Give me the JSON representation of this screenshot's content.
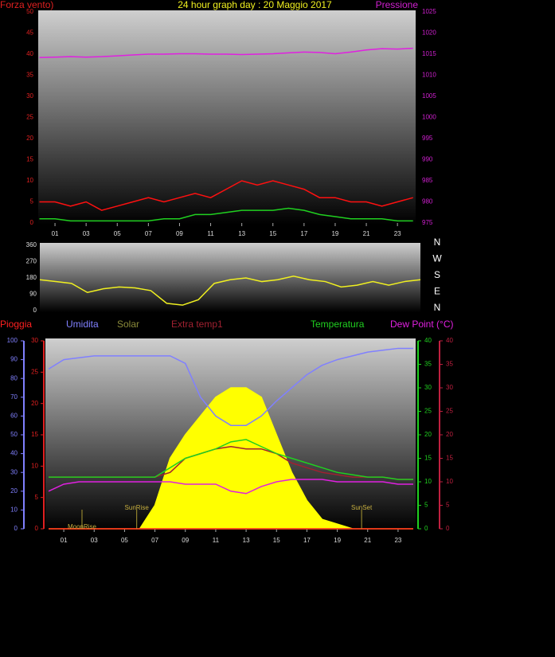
{
  "title": "24 hour graph day : 20 Maggio 2017",
  "chart_data": [
    {
      "type": "line",
      "x": [
        0,
        1,
        2,
        3,
        4,
        5,
        6,
        7,
        8,
        9,
        10,
        11,
        12,
        13,
        14,
        15,
        16,
        17,
        18,
        19,
        20,
        21,
        22,
        23,
        24
      ],
      "xlim": [
        0,
        24
      ],
      "xticks": [
        {
          "value": 1,
          "label": "01"
        },
        {
          "value": 3,
          "label": "03"
        },
        {
          "value": 5,
          "label": "05"
        },
        {
          "value": 7,
          "label": "07"
        },
        {
          "value": 9,
          "label": "09"
        },
        {
          "value": 11,
          "label": "11"
        },
        {
          "value": 13,
          "label": "13"
        },
        {
          "value": 15,
          "label": "15"
        },
        {
          "value": 17,
          "label": "17"
        },
        {
          "value": 19,
          "label": "19"
        },
        {
          "value": 21,
          "label": "21"
        },
        {
          "value": 23,
          "label": "23"
        }
      ],
      "axes": {
        "speed": {
          "label": "Forza vento)",
          "color": "#e02020",
          "lim": [
            0,
            50
          ],
          "ticks": [
            0,
            5,
            10,
            15,
            20,
            25,
            30,
            35,
            40,
            45,
            50
          ]
        },
        "pressure": {
          "label": "Pressione",
          "color": "#d020d0",
          "lim": [
            975,
            1025
          ],
          "ticks": [
            975,
            980,
            985,
            990,
            995,
            1000,
            1005,
            1010,
            1015,
            1020,
            1025
          ]
        }
      },
      "series": [
        {
          "axis": "speed",
          "color": "#ff1010",
          "values": [
            5,
            5,
            4,
            5,
            3,
            4,
            5,
            6,
            5,
            6,
            7,
            6,
            8,
            10,
            9,
            10,
            9,
            8,
            6,
            6,
            5,
            5,
            4,
            5,
            6
          ]
        },
        {
          "axis": "speed",
          "color": "#20d020",
          "values": [
            1,
            1,
            0.5,
            0.5,
            0.5,
            0.5,
            0.5,
            0.5,
            1,
            1,
            2,
            2,
            2.5,
            3,
            3,
            3,
            3.5,
            3,
            2,
            1.5,
            1,
            1,
            1,
            0.5,
            0.5
          ]
        },
        {
          "axis": "pressure",
          "color": "#e020e0",
          "values": [
            1014.2,
            1014.3,
            1014.4,
            1014.3,
            1014.4,
            1014.6,
            1014.8,
            1015,
            1015,
            1015.1,
            1015.1,
            1015,
            1015,
            1014.9,
            1015,
            1015.1,
            1015.3,
            1015.5,
            1015.4,
            1015.1,
            1015.5,
            1016,
            1016.3,
            1016.2,
            1016.4
          ]
        }
      ]
    },
    {
      "type": "line",
      "x": [
        0,
        1,
        2,
        3,
        4,
        5,
        6,
        7,
        8,
        9,
        10,
        11,
        12,
        13,
        14,
        15,
        16,
        17,
        18,
        19,
        20,
        21,
        22,
        23,
        24
      ],
      "xlim": [
        0,
        24
      ],
      "compass": [
        "N",
        "W",
        "S",
        "E",
        "N"
      ],
      "axes": {
        "direction": {
          "color": "#e0e0e0",
          "lim": [
            0,
            360
          ],
          "ticks": [
            0,
            90,
            180,
            270,
            360
          ]
        }
      },
      "series": [
        {
          "axis": "direction",
          "color": "#f0f020",
          "values": [
            170,
            160,
            150,
            100,
            120,
            130,
            125,
            110,
            40,
            30,
            60,
            150,
            170,
            180,
            160,
            170,
            190,
            170,
            160,
            130,
            140,
            160,
            140,
            160,
            170
          ]
        }
      ]
    },
    {
      "type": "line",
      "x": [
        0,
        1,
        2,
        3,
        4,
        5,
        6,
        7,
        8,
        9,
        10,
        11,
        12,
        13,
        14,
        15,
        16,
        17,
        18,
        19,
        20,
        21,
        22,
        23,
        24
      ],
      "xlim": [
        0,
        24
      ],
      "xticks": [
        {
          "value": 1,
          "label": "01"
        },
        {
          "value": 3,
          "label": "03"
        },
        {
          "value": 5,
          "label": "05"
        },
        {
          "value": 7,
          "label": "07"
        },
        {
          "value": 9,
          "label": "09"
        },
        {
          "value": 11,
          "label": "11"
        },
        {
          "value": 13,
          "label": "13"
        },
        {
          "value": 15,
          "label": "15"
        },
        {
          "value": 17,
          "label": "17"
        },
        {
          "value": 19,
          "label": "19"
        },
        {
          "value": 21,
          "label": "21"
        },
        {
          "value": 23,
          "label": "23"
        }
      ],
      "axes": {
        "humidity": {
          "color": "#8080ff",
          "lim": [
            0,
            100
          ],
          "ticks": [
            0,
            10,
            20,
            30,
            40,
            50,
            60,
            70,
            80,
            90,
            100
          ]
        },
        "rain": {
          "color": "#e02020",
          "lim": [
            0,
            30
          ],
          "ticks": [
            0,
            5,
            10,
            15,
            20,
            25,
            30
          ]
        },
        "temp": {
          "color": "#20d020",
          "lim": [
            0,
            40
          ],
          "ticks": [
            0,
            5,
            10,
            15,
            20,
            25,
            30,
            35,
            40
          ]
        },
        "dew": {
          "color": "#c02040",
          "lim": [
            0,
            40
          ],
          "ticks": [
            0,
            5,
            10,
            15,
            20,
            25,
            30,
            35,
            40
          ]
        }
      },
      "series": [
        {
          "name": "Pioggia",
          "axis": "rain",
          "color": "#ff2020",
          "values": [
            0,
            0,
            0,
            0,
            0,
            0,
            0,
            0,
            0,
            0,
            0,
            0,
            0,
            0,
            0,
            0,
            0,
            0,
            0,
            0,
            0,
            0,
            0,
            0,
            0
          ]
        },
        {
          "name": "Umidita",
          "axis": "humidity",
          "color": "#8080ff",
          "values": [
            85,
            90,
            91,
            92,
            92,
            92,
            92,
            92,
            92,
            88,
            70,
            60,
            55,
            55,
            60,
            68,
            75,
            82,
            87,
            90,
            92,
            94,
            95,
            96,
            96
          ]
        },
        {
          "name": "Solar",
          "axis": "temp",
          "color": "#8a8a3a",
          "fill_color": "#ffff00",
          "values": [
            0,
            0,
            0,
            0,
            0,
            0,
            0,
            5,
            15,
            20,
            24,
            28,
            30,
            30,
            28,
            20,
            12,
            6,
            2,
            1,
            0,
            0,
            0,
            0,
            0
          ]
        },
        {
          "name": "Extra temp1",
          "axis": "temp",
          "color": "#a02030",
          "values": [
            11,
            11,
            11,
            11,
            11,
            11,
            11,
            11,
            12,
            15,
            16,
            17,
            17.5,
            17,
            17,
            16,
            14,
            13,
            12,
            11.5,
            11,
            11,
            11,
            10.5,
            10.5
          ]
        },
        {
          "name": "Temperatura",
          "axis": "temp",
          "color": "#20d020",
          "values": [
            11,
            11,
            11,
            11,
            11,
            11,
            11,
            11,
            13,
            15,
            16,
            17,
            18.5,
            19,
            17.5,
            16,
            15,
            14,
            13,
            12,
            11.5,
            11,
            11,
            10.5,
            10.5
          ]
        },
        {
          "name": "Dew Point (°C)",
          "axis": "dew",
          "color": "#e020e0",
          "values": [
            8,
            9.5,
            10,
            10,
            10,
            10,
            10,
            10,
            10,
            9.5,
            9.5,
            9.5,
            8,
            7.5,
            9,
            10,
            10.5,
            10.5,
            10.5,
            10,
            10,
            10,
            10,
            9.5,
            9.5
          ]
        }
      ],
      "events": [
        {
          "label": "MoonRise",
          "x": 2.2
        },
        {
          "label": "SunRise",
          "x": 5.8
        },
        {
          "label": "SunSet",
          "x": 20.6
        }
      ]
    }
  ]
}
